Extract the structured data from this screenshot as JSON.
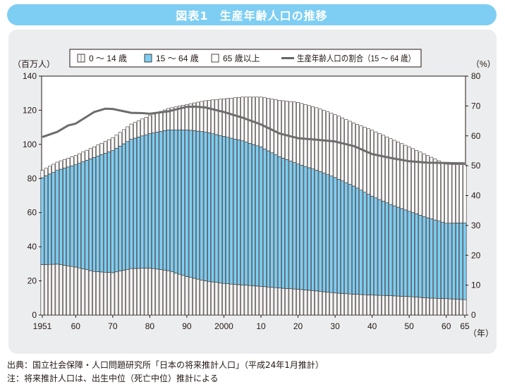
{
  "header": {
    "figure_label": "図表1",
    "title": "生産年齢人口の推移"
  },
  "legend": {
    "items": [
      {
        "label": "0 ～ 14 歳",
        "color": "#f7f7f7"
      },
      {
        "label": "15 ～ 64 歳",
        "color": "#7ecef4"
      },
      {
        "label": "65 歳以上",
        "color": "#ffffff"
      },
      {
        "label": "生産年齢人口の割合（15 ～ 64 歳）",
        "color": "#666666"
      }
    ]
  },
  "footnote": {
    "source": "出典：国立社会保障・人口問題研究所「日本の将来推計人口」（平成24年1月推計）",
    "note": "注：将来推計人口は、出生中位（死亡中位）推計による"
  },
  "chart_data": {
    "type": "bar",
    "title": "生産年齢人口の推移",
    "ylabel": "（百万人）",
    "y2label": "（%）",
    "xlabel": "（年）",
    "ylim": [
      0,
      140
    ],
    "y2lim": [
      0,
      80
    ],
    "yticks": [
      "0",
      "20",
      "40",
      "60",
      "80",
      "100",
      "120",
      "140"
    ],
    "y2ticks": [
      "0",
      "10",
      "20",
      "30",
      "40",
      "50",
      "60",
      "70",
      "80"
    ],
    "xtick_labels": [
      {
        "year": 1951,
        "label": "1951"
      },
      {
        "year": 1960,
        "label": "60"
      },
      {
        "year": 1970,
        "label": "70"
      },
      {
        "year": 1980,
        "label": "80"
      },
      {
        "year": 1990,
        "label": "90"
      },
      {
        "year": 2000,
        "label": "2000"
      },
      {
        "year": 2010,
        "label": "10"
      },
      {
        "year": 2020,
        "label": "20"
      },
      {
        "year": 2030,
        "label": "30"
      },
      {
        "year": 2040,
        "label": "40"
      },
      {
        "year": 2050,
        "label": "50"
      },
      {
        "year": 2060,
        "label": "60"
      },
      {
        "year": 2065,
        "label": "65"
      }
    ],
    "stacked": true,
    "keyframes": {
      "years": [
        1951,
        1955,
        1960,
        1965,
        1970,
        1975,
        1980,
        1985,
        1990,
        1995,
        2000,
        2005,
        2010,
        2015,
        2020,
        2025,
        2030,
        2035,
        2040,
        2045,
        2050,
        2055,
        2060,
        2065
      ],
      "age_0_14": [
        29.5,
        29.8,
        28.1,
        25.5,
        24.8,
        27.2,
        27.5,
        26.0,
        22.5,
        20.0,
        18.5,
        17.6,
        16.8,
        15.8,
        15.1,
        14.1,
        12.9,
        12.2,
        11.7,
        11.3,
        10.8,
        10.0,
        9.6,
        9.0
      ],
      "age_15_64": [
        51.0,
        55.0,
        60.0,
        66.9,
        71.6,
        75.8,
        78.8,
        82.5,
        86.0,
        87.3,
        86.2,
        84.5,
        81.7,
        77.0,
        73.4,
        70.8,
        67.7,
        63.4,
        57.9,
        53.5,
        50.0,
        47.0,
        44.2,
        45.0
      ],
      "age_65_plus": [
        4.3,
        4.8,
        5.4,
        6.2,
        7.4,
        8.9,
        10.6,
        12.5,
        14.9,
        18.3,
        22.0,
        25.6,
        29.2,
        33.0,
        36.1,
        36.6,
        36.9,
        37.0,
        38.7,
        38.6,
        37.7,
        36.5,
        34.6,
        34.0
      ]
    },
    "series": [
      {
        "name": "0 ～ 14 歳",
        "axis": "left",
        "source": "keyframes.age_0_14"
      },
      {
        "name": "15 ～ 64 歳",
        "axis": "left",
        "source": "keyframes.age_15_64"
      },
      {
        "name": "65 歳以上",
        "axis": "left",
        "source": "keyframes.age_65_plus"
      },
      {
        "name": "生産年齢人口の割合（15 ～ 64 歳）",
        "axis": "right",
        "type": "line",
        "points": [
          [
            1951,
            59.6
          ],
          [
            1955,
            61.3
          ],
          [
            1958,
            63.5
          ],
          [
            1960,
            64.1
          ],
          [
            1965,
            68.0
          ],
          [
            1968,
            69.1
          ],
          [
            1970,
            69.0
          ],
          [
            1975,
            67.7
          ],
          [
            1978,
            67.6
          ],
          [
            1980,
            67.4
          ],
          [
            1985,
            68.2
          ],
          [
            1990,
            69.7
          ],
          [
            1992,
            69.8
          ],
          [
            1995,
            69.5
          ],
          [
            2000,
            68.0
          ],
          [
            2005,
            66.1
          ],
          [
            2010,
            63.8
          ],
          [
            2015,
            60.8
          ],
          [
            2020,
            59.2
          ],
          [
            2025,
            58.7
          ],
          [
            2030,
            58.1
          ],
          [
            2035,
            56.6
          ],
          [
            2040,
            53.9
          ],
          [
            2045,
            52.6
          ],
          [
            2050,
            51.5
          ],
          [
            2055,
            51.0
          ],
          [
            2060,
            50.9
          ],
          [
            2065,
            50.8
          ]
        ]
      }
    ]
  }
}
